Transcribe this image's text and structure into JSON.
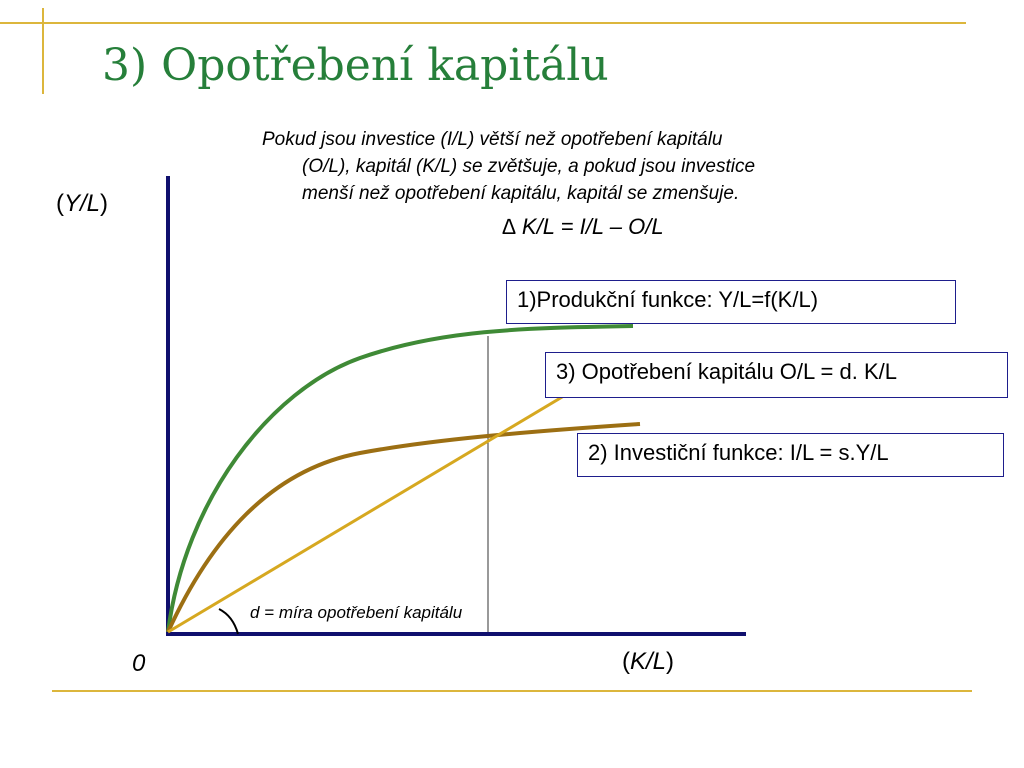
{
  "title": "3) Opotřebení kapitálu",
  "description_lines": [
    "Pokud jsou investice (I/L) větší než opotřebení kapitálu",
    "(O/L), kapitál (K/L) se zvětšuje, a pokud jsou investice",
    "menší než opotřebení kapitálu, kapitál se zmenšuje."
  ],
  "formula": "∆ K/L = I/L – O/L",
  "axes": {
    "y_label_open": "(",
    "y_label": "Y/L",
    "y_label_close": ")",
    "x_label_open": "(",
    "x_label": "K/L",
    "x_label_close": ")",
    "origin": "0"
  },
  "curves": {
    "production": {
      "label": "1)Produkční funkce: Y/L=f(K/L)",
      "color": "#3f8a36"
    },
    "depreciation": {
      "label": "3) Opotřebení kapitálu O/L = d. K/L",
      "color": "#d6a820"
    },
    "investment": {
      "label": "2) Investiční funkce: I/L = s.Y/L",
      "color": "#9c6f13"
    }
  },
  "angle_annotation": "d = míra opotřebení kapitálu",
  "colors": {
    "accent_frame": "#dcb63c",
    "axis": "#10106e",
    "title": "#267f3a",
    "box_border": "#1e1e8c"
  }
}
